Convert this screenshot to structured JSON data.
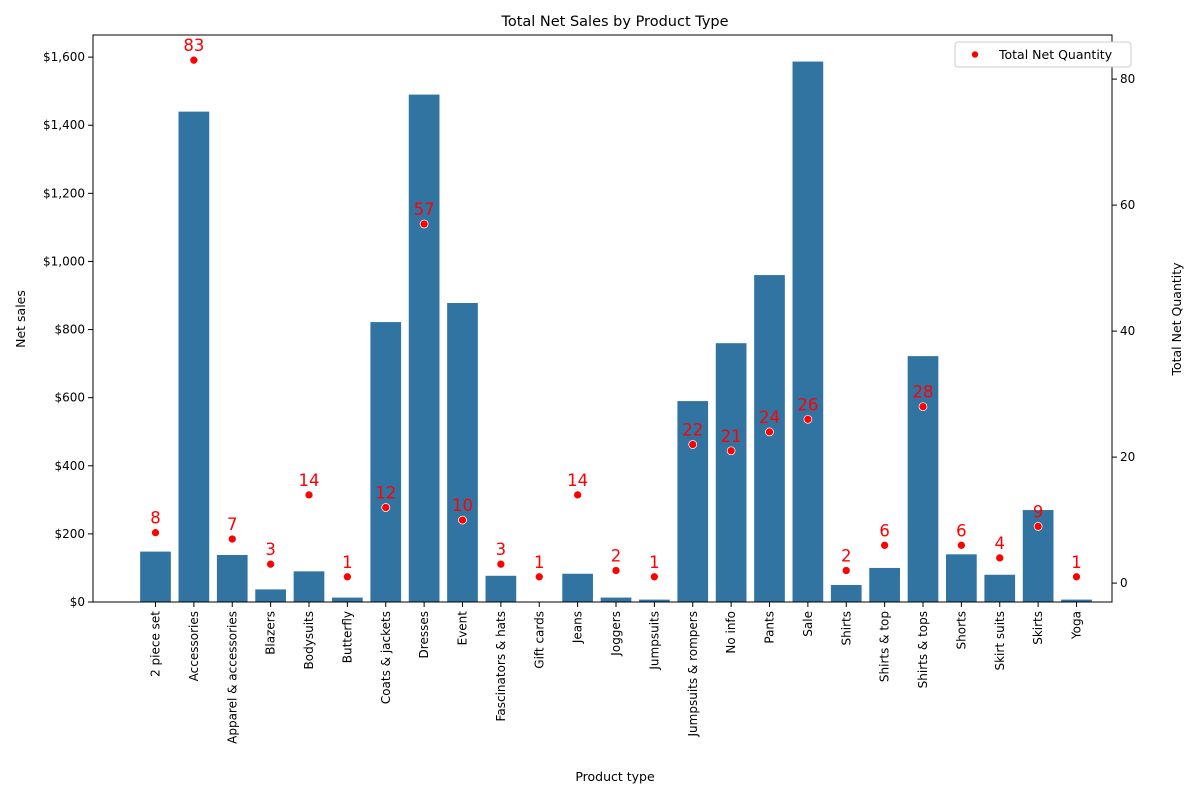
{
  "chart_data": {
    "type": "bar",
    "title": "Total Net Sales by Product Type",
    "xlabel": "Product type",
    "ylabel": "Net sales",
    "y2label": "Total Net Quantity",
    "ylim": [
      0,
      1665
    ],
    "y2lim": [
      -3,
      87
    ],
    "yticks": [
      0,
      200,
      400,
      600,
      800,
      1000,
      1200,
      1400,
      1600
    ],
    "yticklabels": [
      "$0",
      "$200",
      "$400",
      "$600",
      "$800",
      "$1,000",
      "$1,200",
      "$1,400",
      "$1,600"
    ],
    "y2ticks": [
      0,
      20,
      40,
      60,
      80
    ],
    "y2ticklabels": [
      "0",
      "20",
      "40",
      "60",
      "80"
    ],
    "grid": false,
    "legend_position": "top-right",
    "categories": [
      "2 piece set",
      "Accessories",
      "Apparel & accessories",
      "Blazers",
      "Bodysuits",
      "Butterfly",
      "Coats & jackets",
      "Dresses",
      "Event",
      "Fascinators & hats",
      "Gift cards",
      "Jeans",
      "Joggers",
      "Jumpsuits",
      "Jumpsuits & rompers",
      "No info",
      "Pants",
      "Sale",
      "Shirts",
      "Shirts & top",
      "Shirts & tops",
      "Shorts",
      "Skirt suits",
      "Skirts",
      "Yoga"
    ],
    "series": [
      {
        "kind": "bar",
        "axis": "left",
        "color": "#3274a1",
        "values": [
          148,
          1440,
          138,
          37,
          90,
          13,
          822,
          1490,
          878,
          77,
          0,
          83,
          13,
          7,
          590,
          760,
          960,
          1587,
          50,
          100,
          722,
          140,
          80,
          270,
          7
        ]
      },
      {
        "kind": "scatter",
        "axis": "right",
        "name": "Total Net Quantity",
        "color": "#ff0000",
        "values": [
          8,
          83,
          7,
          3,
          14,
          1,
          12,
          57,
          10,
          3,
          1,
          14,
          2,
          1,
          22,
          21,
          24,
          26,
          2,
          6,
          28,
          6,
          4,
          9,
          1
        ]
      }
    ]
  }
}
